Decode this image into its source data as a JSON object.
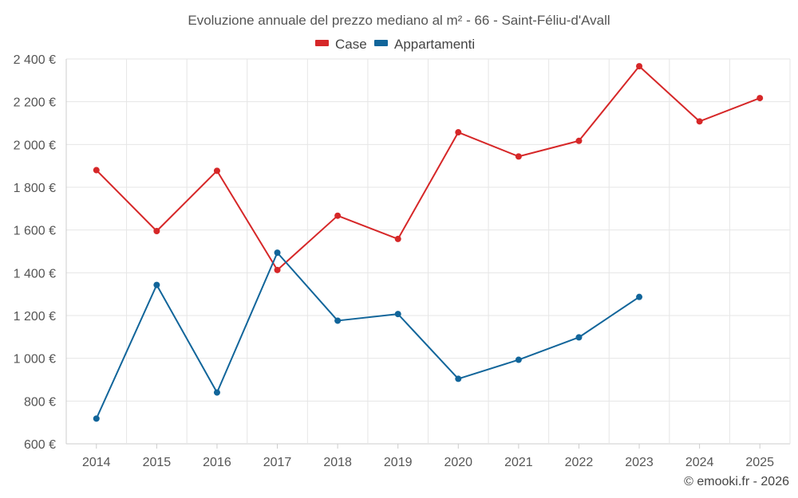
{
  "chart_data": {
    "type": "line",
    "title": "Evoluzione annuale del prezzo mediano al m² - 66 - Saint-Féliu-d'Avall",
    "xlabel": "",
    "ylabel": "",
    "categories": [
      "2014",
      "2015",
      "2016",
      "2017",
      "2018",
      "2019",
      "2020",
      "2021",
      "2022",
      "2023",
      "2024",
      "2025"
    ],
    "ylim": [
      600,
      2400
    ],
    "yticks": [
      600,
      800,
      1000,
      1200,
      1400,
      1600,
      1800,
      2000,
      2200,
      2400
    ],
    "ytick_labels": [
      "600 €",
      "800 €",
      "1 000 €",
      "1 200 €",
      "1 400 €",
      "1 600 €",
      "1 800 €",
      "2 000 €",
      "2 200 €",
      "2 400 €"
    ],
    "grid": true,
    "legend_position": "top-center",
    "series": [
      {
        "name": "Case",
        "color": "#d62728",
        "values": [
          1880,
          1595,
          1877,
          1413,
          1667,
          1558,
          2057,
          1944,
          2017,
          2366,
          2108,
          2217
        ]
      },
      {
        "name": "Appartamenti",
        "color": "#11659a",
        "values": [
          718,
          1343,
          840,
          1494,
          1176,
          1207,
          904,
          993,
          1098,
          1287,
          null,
          null
        ]
      }
    ]
  },
  "credit": "© emooki.fr - 2026"
}
